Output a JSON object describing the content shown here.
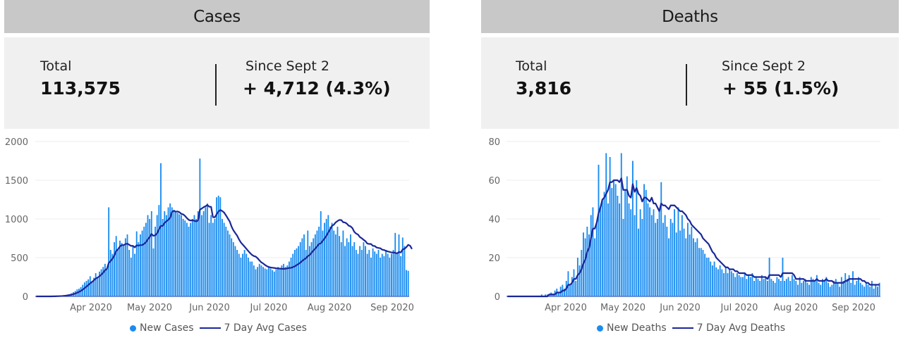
{
  "colors": {
    "bar": "#1a8cf0",
    "avg_line": "#1a2799",
    "header_bg": "#c8c8c8",
    "summary_bg": "#f0f0f0"
  },
  "cases": {
    "header": "Cases",
    "total_label": "Total",
    "total_value": "113,575",
    "since_label": "Since Sept 2",
    "since_value": "+ 4,712 (4.3%)",
    "legend_bars": "New Cases",
    "legend_line": "7 Day Avg Cases"
  },
  "deaths": {
    "header": "Deaths",
    "total_label": "Total",
    "total_value": "3,816",
    "since_label": "Since Sept 2",
    "since_value": "+ 55 (1.5%)",
    "legend_bars": "New Deaths",
    "legend_line": "7 Day Avg Deaths"
  },
  "chart_data": [
    {
      "type": "bar",
      "x_ticks": [
        "Apr 2020",
        "May 2020",
        "Jun 2020",
        "Jul 2020",
        "Aug 2020",
        "Sep 2020"
      ],
      "ylim": [
        0,
        2000
      ],
      "yticks": [
        0,
        500,
        1000,
        1500,
        2000
      ],
      "grid": true,
      "legend": "bottom",
      "series": [
        {
          "name": "New Cases",
          "type": "bar",
          "values": [
            0,
            0,
            0,
            0,
            0,
            0,
            0,
            0,
            0,
            1,
            2,
            3,
            5,
            5,
            8,
            12,
            20,
            25,
            30,
            40,
            55,
            70,
            90,
            100,
            120,
            150,
            180,
            200,
            220,
            260,
            200,
            240,
            300,
            250,
            320,
            350,
            380,
            420,
            350,
            1150,
            600,
            550,
            700,
            780,
            600,
            720,
            690,
            660,
            750,
            800,
            600,
            500,
            650,
            550,
            840,
            700,
            800,
            850,
            900,
            950,
            1050,
            1000,
            1100,
            620,
            900,
            1050,
            1180,
            1720,
            1000,
            1100,
            1050,
            1150,
            1200,
            1150,
            1100,
            1100,
            1080,
            1060,
            1050,
            1000,
            980,
            950,
            900,
            950,
            1000,
            1050,
            1000,
            1100,
            1780,
            1050,
            1100,
            1150,
            1200,
            950,
            1050,
            950,
            1000,
            1280,
            1300,
            1280,
            1000,
            950,
            900,
            850,
            800,
            750,
            700,
            650,
            600,
            550,
            500,
            550,
            600,
            550,
            500,
            450,
            450,
            400,
            350,
            380,
            420,
            400,
            380,
            360,
            350,
            380,
            360,
            340,
            320,
            350,
            380,
            360,
            400,
            420,
            380,
            400,
            450,
            500,
            550,
            600,
            620,
            650,
            700,
            750,
            800,
            600,
            850,
            650,
            700,
            750,
            800,
            850,
            900,
            1100,
            850,
            950,
            1000,
            1050,
            900,
            950,
            850,
            800,
            900,
            780,
            700,
            850,
            650,
            750,
            700,
            800,
            650,
            700,
            600,
            550,
            650,
            600,
            700,
            650,
            550,
            600,
            500,
            620,
            580,
            550,
            600,
            500,
            550,
            520,
            600,
            550,
            500,
            550,
            600,
            820,
            550,
            800,
            520,
            760,
            650,
            340,
            330
          ],
          "color": "#1a8cf0"
        },
        {
          "name": "7 Day Avg Cases",
          "type": "line",
          "values": [
            0,
            0,
            0,
            0,
            0,
            0,
            0,
            0,
            0,
            1,
            1,
            2,
            3,
            4,
            5,
            7,
            9,
            13,
            17,
            22,
            29,
            37,
            47,
            58,
            71,
            87,
            106,
            126,
            146,
            169,
            186,
            207,
            230,
            243,
            260,
            281,
            306,
            338,
            354,
            431,
            457,
            487,
            528,
            587,
            609,
            645,
            662,
            662,
            676,
            681,
            666,
            652,
            653,
            633,
            659,
            656,
            662,
            663,
            678,
            700,
            737,
            765,
            807,
            782,
            789,
            816,
            865,
            910,
            910,
            949,
            970,
            988,
            1015,
            1090,
            1107,
            1094,
            1097,
            1087,
            1066,
            1059,
            1039,
            1012,
            988,
            979,
            983,
            976,
            969,
            981,
            1121,
            1134,
            1152,
            1164,
            1180,
            1158,
            1157,
            1024,
            1021,
            1061,
            1096,
            1116,
            1102,
            1083,
            1047,
            1007,
            969,
            903,
            853,
            818,
            785,
            737,
            697,
            669,
            643,
            614,
            586,
            559,
            536,
            521,
            514,
            493,
            465,
            440,
            425,
            406,
            390,
            380,
            373,
            370,
            367,
            363,
            361,
            359,
            356,
            356,
            357,
            362,
            367,
            369,
            378,
            388,
            404,
            419,
            436,
            458,
            478,
            492,
            519,
            534,
            563,
            592,
            617,
            645,
            676,
            685,
            718,
            747,
            783,
            826,
            867,
            910,
            926,
            956,
            973,
            987,
            986,
            958,
            954,
            939,
            913,
            904,
            881,
            833,
            811,
            798,
            766,
            751,
            730,
            713,
            682,
            677,
            676,
            653,
            650,
            631,
            626,
            621,
            603,
            599,
            589,
            580,
            574,
            567,
            567,
            562,
            555,
            574,
            567,
            606,
            614,
            636,
            666,
            654,
            612
          ],
          "color": "#1a2799"
        }
      ]
    },
    {
      "type": "bar",
      "x_ticks": [
        "Apr 2020",
        "May 2020",
        "Jun 2020",
        "Jul 2020",
        "Aug 2020",
        "Sep 2020"
      ],
      "ylim": [
        0,
        80
      ],
      "yticks": [
        0,
        20,
        40,
        60,
        80
      ],
      "grid": true,
      "legend": "bottom",
      "series": [
        {
          "name": "New Deaths",
          "type": "bar",
          "values": [
            0,
            0,
            0,
            0,
            0,
            0,
            0,
            0,
            0,
            0,
            0,
            0,
            0,
            0,
            0,
            0,
            0,
            0,
            1,
            0,
            1,
            1,
            1,
            2,
            1,
            3,
            4,
            2,
            5,
            6,
            4,
            8,
            13,
            6,
            10,
            14,
            8,
            20,
            16,
            24,
            33,
            30,
            36,
            32,
            42,
            46,
            30,
            38,
            68,
            46,
            50,
            54,
            74,
            48,
            72,
            56,
            60,
            58,
            52,
            48,
            74,
            40,
            55,
            62,
            48,
            45,
            70,
            42,
            60,
            35,
            45,
            40,
            58,
            55,
            48,
            46,
            42,
            45,
            38,
            40,
            44,
            59,
            38,
            42,
            36,
            30,
            40,
            38,
            45,
            33,
            46,
            34,
            42,
            35,
            30,
            38,
            32,
            36,
            30,
            28,
            30,
            25,
            25,
            24,
            22,
            20,
            20,
            18,
            16,
            18,
            15,
            14,
            16,
            14,
            12,
            15,
            12,
            14,
            13,
            12,
            10,
            12,
            11,
            10,
            10,
            12,
            9,
            11,
            10,
            12,
            8,
            10,
            9,
            8,
            11,
            9,
            10,
            8,
            20,
            9,
            8,
            7,
            10,
            9,
            8,
            20,
            8,
            9,
            10,
            8,
            11,
            9,
            8,
            6,
            10,
            7,
            8,
            9,
            7,
            6,
            10,
            9,
            8,
            11,
            7,
            6,
            9,
            8,
            10,
            7,
            5,
            6,
            8,
            9,
            7,
            5,
            10,
            8,
            12,
            9,
            11,
            7,
            13,
            6,
            8,
            10,
            7,
            6,
            5,
            7,
            6,
            5,
            8,
            4,
            6,
            5,
            7
          ],
          "color": "#1a8cf0"
        },
        {
          "name": "7 Day Avg Deaths",
          "type": "line",
          "values": [
            0,
            0,
            0,
            0,
            0,
            0,
            0,
            0,
            0,
            0,
            0,
            0,
            0,
            0,
            0,
            0,
            0,
            0,
            0,
            0,
            0,
            0,
            1,
            1,
            1,
            1,
            2,
            2,
            2,
            3,
            3,
            4,
            6,
            6,
            7,
            9,
            9,
            11,
            12,
            14,
            17,
            19,
            23,
            25,
            30,
            35,
            35,
            38,
            43,
            46,
            50,
            51,
            53,
            55,
            59,
            59,
            60,
            60,
            60,
            59,
            61,
            55,
            55,
            55,
            52,
            51,
            58,
            54,
            56,
            53,
            52,
            49,
            51,
            51,
            50,
            49,
            51,
            48,
            48,
            46,
            44,
            48,
            47,
            47,
            46,
            45,
            47,
            47,
            47,
            46,
            45,
            44,
            44,
            43,
            42,
            40,
            39,
            37,
            36,
            35,
            34,
            33,
            32,
            30,
            29,
            28,
            27,
            25,
            23,
            22,
            20,
            19,
            18,
            17,
            16,
            15,
            15,
            14,
            14,
            14,
            13,
            13,
            12,
            12,
            12,
            12,
            11,
            11,
            11,
            11,
            10,
            10,
            10,
            10,
            10,
            10,
            10,
            9,
            11,
            11,
            11,
            11,
            11,
            11,
            10,
            12,
            12,
            12,
            12,
            12,
            12,
            11,
            9,
            9,
            9,
            9,
            9,
            8,
            8,
            8,
            8,
            8,
            8,
            9,
            8,
            8,
            8,
            8,
            9,
            8,
            8,
            8,
            7,
            7,
            7,
            7,
            7,
            7,
            8,
            8,
            9,
            9,
            9,
            9,
            9,
            9,
            9,
            8,
            8,
            7,
            7,
            6,
            6,
            6,
            6,
            6,
            6
          ],
          "color": "#1a2799"
        }
      ]
    }
  ]
}
